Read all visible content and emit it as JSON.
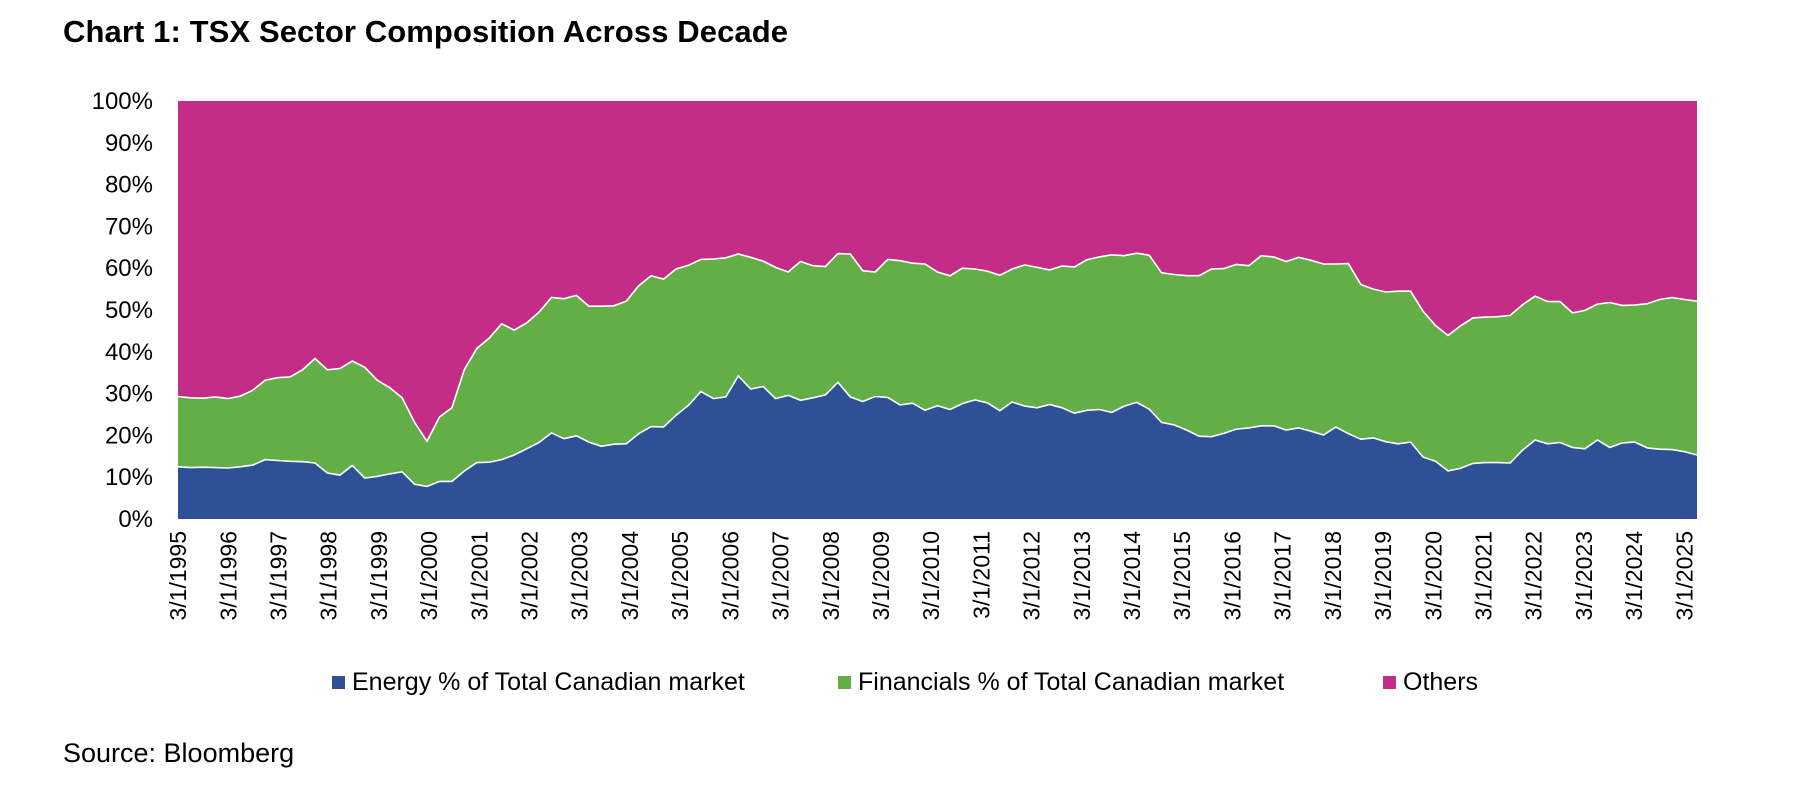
{
  "title": "Chart 1: TSX Sector Composition Across Decade",
  "source": "Source: Bloomberg",
  "chart_data": {
    "type": "area",
    "stacked": true,
    "percent_stacked": true,
    "title": "Chart 1: TSX Sector Composition Across Decade",
    "xlabel": "",
    "ylabel": "",
    "ylim": [
      0,
      100
    ],
    "y_tick_labels": [
      "0%",
      "10%",
      "20%",
      "30%",
      "40%",
      "50%",
      "60%",
      "70%",
      "80%",
      "90%",
      "100%"
    ],
    "x_tick_labels": [
      "3/1/1995",
      "3/1/1996",
      "3/1/1997",
      "3/1/1998",
      "3/1/1999",
      "3/1/2000",
      "3/1/2001",
      "3/1/2002",
      "3/1/2003",
      "3/1/2004",
      "3/1/2005",
      "3/1/2006",
      "3/1/2007",
      "3/1/2008",
      "3/1/2009",
      "3/1/2010",
      "3/1/2011",
      "3/1/2012",
      "3/1/2013",
      "3/1/2014",
      "3/1/2015",
      "3/1/2016",
      "3/1/2017",
      "3/1/2018",
      "3/1/2019",
      "3/1/2020",
      "3/1/2021",
      "3/1/2022",
      "3/1/2023",
      "3/1/2024",
      "3/1/2025"
    ],
    "x_start": "1995-03-01",
    "x_end": "2025-06-01",
    "points_per_year": 4,
    "grid": false,
    "legend_position": "bottom",
    "series": [
      {
        "name": "Energy % of Total Canadian market",
        "color": "#2E5196",
        "values": [
          12.5,
          12.3,
          12.4,
          12.3,
          12.2,
          12.5,
          12.9,
          14.2,
          14.0,
          13.8,
          13.7,
          13.4,
          11.0,
          10.5,
          12.8,
          9.8,
          10.2,
          10.8,
          11.3,
          8.3,
          7.8,
          9.0,
          9.0,
          11.5,
          13.5,
          13.6,
          14.2,
          15.3,
          16.8,
          18.3,
          20.6,
          19.2,
          19.9,
          18.4,
          17.4,
          17.9,
          18.0,
          20.4,
          22.1,
          22.0,
          24.8,
          27.2,
          30.5,
          28.8,
          29.2,
          34.2,
          31.1,
          31.7,
          28.8,
          29.6,
          28.4,
          29.0,
          29.7,
          32.7,
          29.2,
          28.1,
          29.3,
          29.1,
          27.3,
          27.7,
          26.0,
          27.1,
          26.2,
          27.6,
          28.5,
          27.8,
          25.9,
          28.0,
          27.0,
          26.6,
          27.4,
          26.6,
          25.3,
          26.0,
          26.2,
          25.5,
          27.0,
          27.9,
          26.3,
          23.1,
          22.5,
          21.3,
          19.8,
          19.7,
          20.5,
          21.5,
          21.8,
          22.3,
          22.3,
          21.3,
          21.8,
          21.0,
          20.1,
          22.0,
          20.4,
          19.1,
          19.4,
          18.5,
          18.0,
          18.4,
          14.8,
          13.8,
          11.5,
          12.1,
          13.3,
          13.5,
          13.5,
          13.4,
          16.5,
          18.9,
          18.0,
          18.3,
          17.1,
          16.8,
          18.9,
          17.1,
          18.2,
          18.4,
          17.0,
          16.7,
          16.6,
          16.1,
          15.3
        ]
      },
      {
        "name": "Financials % of Total Canadian market",
        "color": "#64AE47",
        "values": [
          16.8,
          16.7,
          16.5,
          16.9,
          16.6,
          16.9,
          17.9,
          19.0,
          19.8,
          20.2,
          22.0,
          25.0,
          24.7,
          25.5,
          25.0,
          26.5,
          23.0,
          20.6,
          17.7,
          14.8,
          10.8,
          15.4,
          17.6,
          24.3,
          27.3,
          29.7,
          32.5,
          29.9,
          30.1,
          31.2,
          32.4,
          33.5,
          33.6,
          32.5,
          33.5,
          33.1,
          34.1,
          35.4,
          36.1,
          35.4,
          35.0,
          33.5,
          31.6,
          33.4,
          33.3,
          29.2,
          31.5,
          30.0,
          31.4,
          29.5,
          33.2,
          31.6,
          30.7,
          30.8,
          34.2,
          31.3,
          29.8,
          33.0,
          34.5,
          33.5,
          35.0,
          32.0,
          32.0,
          32.4,
          31.3,
          31.5,
          32.4,
          31.8,
          33.8,
          33.6,
          32.2,
          33.9,
          35.0,
          36.0,
          36.5,
          37.7,
          36.0,
          35.7,
          36.8,
          35.8,
          36.0,
          36.9,
          38.4,
          40.1,
          39.4,
          39.4,
          38.8,
          40.7,
          40.4,
          40.3,
          40.8,
          40.9,
          40.9,
          39.0,
          40.7,
          37.0,
          35.6,
          35.8,
          36.5,
          36.1,
          34.9,
          32.5,
          32.4,
          34.1,
          34.8,
          34.8,
          34.9,
          35.3,
          34.8,
          34.4,
          34.0,
          33.7,
          32.2,
          33.1,
          32.5,
          34.7,
          32.9,
          32.8,
          34.5,
          35.8,
          36.4,
          36.4,
          36.8
        ]
      },
      {
        "name": "Others",
        "color": "#C42D87",
        "values": [
          70.7,
          71.0,
          71.1,
          70.8,
          71.2,
          70.6,
          69.2,
          66.8,
          66.2,
          66.0,
          64.3,
          61.6,
          64.3,
          64.0,
          62.2,
          63.7,
          66.8,
          68.6,
          71.0,
          76.9,
          81.4,
          75.6,
          73.4,
          64.2,
          59.2,
          56.7,
          53.3,
          54.8,
          53.1,
          50.5,
          47.0,
          47.3,
          46.5,
          49.1,
          49.1,
          49.0,
          47.9,
          44.2,
          41.8,
          42.6,
          40.2,
          39.3,
          37.9,
          37.8,
          37.5,
          36.6,
          37.4,
          38.3,
          39.8,
          40.9,
          38.4,
          39.4,
          39.6,
          36.5,
          36.6,
          40.6,
          40.9,
          37.9,
          38.2,
          38.8,
          39.0,
          40.9,
          41.8,
          40.0,
          40.2,
          40.7,
          41.7,
          40.2,
          39.2,
          39.8,
          40.4,
          39.5,
          39.7,
          38.0,
          37.3,
          36.8,
          37.0,
          36.4,
          36.9,
          41.1,
          41.5,
          41.8,
          41.8,
          40.2,
          40.1,
          39.1,
          39.4,
          37.0,
          37.3,
          38.4,
          37.4,
          38.1,
          39.0,
          39.0,
          38.9,
          43.9,
          45.0,
          45.7,
          45.5,
          45.5,
          50.3,
          53.7,
          56.1,
          53.8,
          51.9,
          51.7,
          51.6,
          51.3,
          48.7,
          46.7,
          48.0,
          48.0,
          50.7,
          50.1,
          48.6,
          48.2,
          48.9,
          48.8,
          48.5,
          47.5,
          47.0,
          47.5,
          47.9
        ]
      }
    ]
  }
}
